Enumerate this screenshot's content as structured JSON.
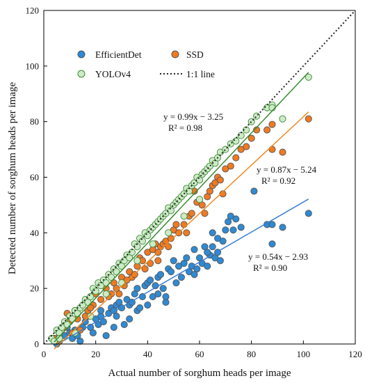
{
  "chart_data": {
    "type": "scatter",
    "xlabel": "Actual number of sorghum heads per image",
    "ylabel": "Detected number of sorghum heads per image",
    "xlim": [
      0,
      120
    ],
    "ylim": [
      0,
      120
    ],
    "xticks": [
      "0",
      "20",
      "40",
      "60",
      "80",
      "100",
      "120"
    ],
    "yticks": [
      "0",
      "20",
      "40",
      "60",
      "80",
      "100",
      "120"
    ],
    "grid": false,
    "legend_position": "top-left",
    "legend_items": [
      {
        "label": "EfficientDet",
        "kind": "marker",
        "series": 0
      },
      {
        "label": "SSD",
        "kind": "marker",
        "series": 1
      },
      {
        "label": "YOLOv4",
        "kind": "marker",
        "series": 2
      },
      {
        "label": "1:1 line",
        "kind": "dotted"
      }
    ],
    "identity_line": {
      "label": "1:1 line",
      "color": "#222222",
      "from": [
        0,
        0
      ],
      "to": [
        120,
        120
      ]
    },
    "series": [
      {
        "name": "EfficientDet",
        "fill": "#2e8ad3",
        "fit_color": "#3a7fd2",
        "fit": {
          "slope": 0.54,
          "intercept": -2.93,
          "x_range": [
            4,
            102
          ],
          "equation": "y = 0.54x − 2.93",
          "r2": "R² = 0.90"
        },
        "points": [
          [
            4,
            2
          ],
          [
            6,
            1
          ],
          [
            8,
            3
          ],
          [
            10,
            4
          ],
          [
            11,
            2
          ],
          [
            12,
            5
          ],
          [
            13,
            3
          ],
          [
            14,
            1
          ],
          [
            15,
            6
          ],
          [
            16,
            8
          ],
          [
            18,
            6
          ],
          [
            19,
            4
          ],
          [
            20,
            9
          ],
          [
            21,
            7
          ],
          [
            22,
            10
          ],
          [
            23,
            8
          ],
          [
            24,
            3
          ],
          [
            25,
            11
          ],
          [
            26,
            13
          ],
          [
            27,
            12
          ],
          [
            28,
            10
          ],
          [
            28,
            14
          ],
          [
            29,
            15
          ],
          [
            30,
            13
          ],
          [
            31,
            7
          ],
          [
            32,
            16
          ],
          [
            33,
            14
          ],
          [
            34,
            15
          ],
          [
            35,
            18
          ],
          [
            36,
            12
          ],
          [
            36,
            20
          ],
          [
            37,
            13
          ],
          [
            38,
            17
          ],
          [
            39,
            21
          ],
          [
            40,
            22
          ],
          [
            40,
            14
          ],
          [
            41,
            23
          ],
          [
            42,
            17
          ],
          [
            43,
            21
          ],
          [
            44,
            24
          ],
          [
            45,
            25
          ],
          [
            46,
            20
          ],
          [
            47,
            15
          ],
          [
            48,
            27
          ],
          [
            49,
            26
          ],
          [
            50,
            30
          ],
          [
            51,
            22
          ],
          [
            52,
            28
          ],
          [
            53,
            24
          ],
          [
            54,
            29
          ],
          [
            55,
            31
          ],
          [
            56,
            26
          ],
          [
            57,
            28
          ],
          [
            58,
            34
          ],
          [
            59,
            27
          ],
          [
            60,
            31
          ],
          [
            61,
            29
          ],
          [
            62,
            35
          ],
          [
            63,
            28
          ],
          [
            64,
            32
          ],
          [
            65,
            35
          ],
          [
            66,
            31
          ],
          [
            67,
            33
          ],
          [
            68,
            30
          ],
          [
            69,
            37
          ],
          [
            70,
            41
          ],
          [
            71,
            44
          ],
          [
            72,
            46
          ],
          [
            73,
            41
          ],
          [
            74,
            45
          ],
          [
            76,
            42
          ],
          [
            81,
            55
          ],
          [
            86,
            43
          ],
          [
            88,
            36
          ],
          [
            88,
            43
          ],
          [
            92,
            42
          ],
          [
            102,
            47
          ],
          [
            5,
            0
          ],
          [
            9,
            6
          ],
          [
            17,
            10
          ],
          [
            22,
            12
          ],
          [
            27,
            6
          ],
          [
            33,
            9
          ],
          [
            44,
            18
          ],
          [
            47,
            17
          ],
          [
            58,
            25
          ],
          [
            63,
            33
          ],
          [
            65,
            40
          ],
          [
            67,
            38
          ]
        ]
      },
      {
        "name": "SSD",
        "fill": "#ee7a22",
        "fit_color": "#ee8a22",
        "fit": {
          "slope": 0.87,
          "intercept": -5.24,
          "x_range": [
            4,
            102
          ],
          "equation": "y = 0.87x − 5.24",
          "r2": "R² = 0.92"
        },
        "points": [
          [
            4,
            2
          ],
          [
            6,
            3
          ],
          [
            8,
            6
          ],
          [
            9,
            11
          ],
          [
            10,
            8
          ],
          [
            12,
            12
          ],
          [
            13,
            9
          ],
          [
            14,
            5
          ],
          [
            16,
            10
          ],
          [
            17,
            12
          ],
          [
            19,
            14
          ],
          [
            20,
            18
          ],
          [
            22,
            16
          ],
          [
            24,
            20
          ],
          [
            26,
            18
          ],
          [
            27,
            22
          ],
          [
            28,
            20
          ],
          [
            29,
            18
          ],
          [
            30,
            24
          ],
          [
            31,
            21
          ],
          [
            33,
            26
          ],
          [
            34,
            24
          ],
          [
            35,
            25
          ],
          [
            36,
            28
          ],
          [
            37,
            31
          ],
          [
            38,
            30
          ],
          [
            40,
            33
          ],
          [
            41,
            29
          ],
          [
            42,
            34
          ],
          [
            43,
            36
          ],
          [
            44,
            33
          ],
          [
            45,
            35
          ],
          [
            46,
            36
          ],
          [
            47,
            37
          ],
          [
            48,
            35
          ],
          [
            49,
            38
          ],
          [
            50,
            41
          ],
          [
            51,
            43
          ],
          [
            52,
            40
          ],
          [
            54,
            43
          ],
          [
            56,
            46
          ],
          [
            57,
            47
          ],
          [
            58,
            55
          ],
          [
            59,
            51
          ],
          [
            60,
            52
          ],
          [
            61,
            50
          ],
          [
            63,
            53
          ],
          [
            64,
            55
          ],
          [
            65,
            57
          ],
          [
            66,
            58
          ],
          [
            67,
            60
          ],
          [
            68,
            59
          ],
          [
            70,
            63
          ],
          [
            72,
            64
          ],
          [
            74,
            67
          ],
          [
            76,
            70
          ],
          [
            78,
            71
          ],
          [
            80,
            74
          ],
          [
            82,
            77
          ],
          [
            86,
            77
          ],
          [
            88,
            70
          ],
          [
            88,
            79
          ],
          [
            92,
            69
          ],
          [
            102,
            81
          ],
          [
            5,
            1
          ],
          [
            11,
            4
          ],
          [
            18,
            13
          ],
          [
            25,
            17
          ],
          [
            32,
            23
          ],
          [
            39,
            27
          ],
          [
            44,
            30
          ],
          [
            55,
            40
          ],
          [
            62,
            47
          ],
          [
            69,
            54
          ]
        ]
      },
      {
        "name": "YOLOv4",
        "fill": "#cdeac7",
        "fit_color": "#3a8a33",
        "fit": {
          "slope": 0.99,
          "intercept": -3.25,
          "x_range": [
            4,
            102
          ],
          "equation": "y = 0.99x − 3.25",
          "r2": "R² = 0.98"
        },
        "points": [
          [
            3,
            2
          ],
          [
            4,
            1
          ],
          [
            5,
            5
          ],
          [
            6,
            4
          ],
          [
            7,
            6
          ],
          [
            8,
            8
          ],
          [
            9,
            7
          ],
          [
            10,
            10
          ],
          [
            11,
            9
          ],
          [
            12,
            12
          ],
          [
            13,
            11
          ],
          [
            14,
            13
          ],
          [
            15,
            14
          ],
          [
            16,
            16
          ],
          [
            17,
            15
          ],
          [
            18,
            17
          ],
          [
            19,
            20
          ],
          [
            20,
            19
          ],
          [
            21,
            22
          ],
          [
            22,
            21
          ],
          [
            23,
            23
          ],
          [
            24,
            22
          ],
          [
            25,
            25
          ],
          [
            26,
            24
          ],
          [
            27,
            27
          ],
          [
            28,
            26
          ],
          [
            29,
            29
          ],
          [
            30,
            28
          ],
          [
            31,
            30
          ],
          [
            32,
            32
          ],
          [
            33,
            31
          ],
          [
            34,
            33
          ],
          [
            35,
            36
          ],
          [
            36,
            35
          ],
          [
            37,
            38
          ],
          [
            38,
            37
          ],
          [
            39,
            40
          ],
          [
            40,
            39
          ],
          [
            41,
            41
          ],
          [
            42,
            42
          ],
          [
            43,
            43
          ],
          [
            44,
            44
          ],
          [
            45,
            45
          ],
          [
            46,
            46
          ],
          [
            47,
            47
          ],
          [
            48,
            49
          ],
          [
            49,
            48
          ],
          [
            50,
            50
          ],
          [
            51,
            51
          ],
          [
            52,
            52
          ],
          [
            53,
            53
          ],
          [
            54,
            54
          ],
          [
            55,
            56
          ],
          [
            56,
            55
          ],
          [
            57,
            57
          ],
          [
            58,
            58
          ],
          [
            59,
            60
          ],
          [
            60,
            59
          ],
          [
            61,
            61
          ],
          [
            62,
            62
          ],
          [
            63,
            63
          ],
          [
            64,
            64
          ],
          [
            65,
            66
          ],
          [
            66,
            65
          ],
          [
            67,
            67
          ],
          [
            68,
            69
          ],
          [
            70,
            70
          ],
          [
            72,
            72
          ],
          [
            74,
            73
          ],
          [
            76,
            75
          ],
          [
            78,
            77
          ],
          [
            80,
            80
          ],
          [
            82,
            82
          ],
          [
            86,
            85
          ],
          [
            88,
            86
          ],
          [
            88,
            85
          ],
          [
            92,
            81
          ],
          [
            102,
            96
          ],
          [
            6,
            2
          ],
          [
            12,
            4
          ],
          [
            18,
            10
          ],
          [
            24,
            18
          ],
          [
            30,
            22
          ],
          [
            36,
            30
          ],
          [
            42,
            36
          ],
          [
            48,
            40
          ],
          [
            54,
            46
          ],
          [
            60,
            52
          ]
        ]
      }
    ]
  }
}
